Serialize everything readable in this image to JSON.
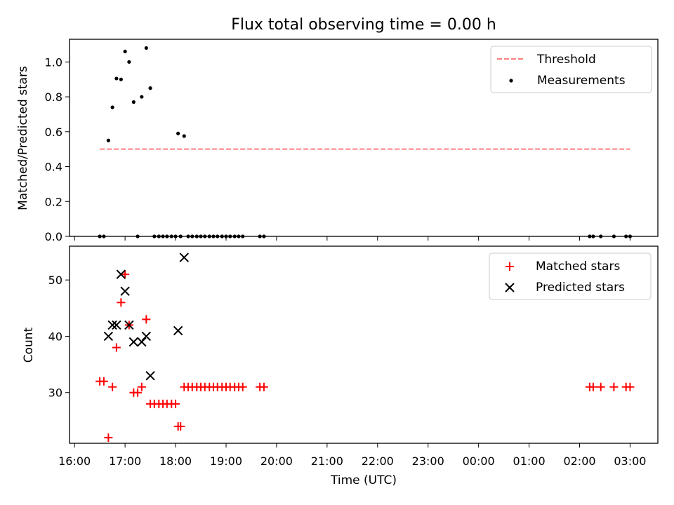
{
  "figure_title": "Flux total observing time = 0.00 h",
  "chart_data": [
    {
      "type": "scatter",
      "ylabel": "Matched/Predicted stars",
      "xlim": [
        -0.1,
        11.55
      ],
      "ylim": [
        0.0,
        1.13
      ],
      "x_is_hours_since": "16:00",
      "yticks": [
        0.0,
        0.2,
        0.4,
        0.6,
        0.8,
        1.0
      ],
      "ytick_labels": [
        "0.0",
        "0.2",
        "0.4",
        "0.6",
        "0.8",
        "1.0"
      ],
      "series": [
        {
          "name": "Threshold",
          "kind": "line",
          "style": "dashed",
          "color": "#ff7f7f",
          "x": [
            0.5,
            11.0
          ],
          "y": [
            0.5,
            0.5
          ]
        },
        {
          "name": "Measurements",
          "kind": "dot",
          "color": "#000000",
          "x": [
            0.5,
            0.58,
            0.67,
            0.75,
            0.83,
            0.92,
            1.0,
            1.08,
            1.17,
            1.25,
            1.33,
            1.42,
            1.5,
            1.58,
            1.67,
            1.75,
            1.83,
            1.92,
            2.0,
            2.05,
            2.1,
            2.17,
            2.25,
            2.33,
            2.42,
            2.5,
            2.58,
            2.67,
            2.75,
            2.83,
            2.92,
            3.0,
            3.08,
            3.17,
            3.25,
            3.33,
            3.67,
            3.75,
            10.2,
            10.27,
            10.42,
            10.68,
            10.92,
            11.0
          ],
          "y": [
            0.0,
            0.0,
            0.55,
            0.74,
            0.905,
            0.9,
            1.06,
            1.0,
            0.77,
            0.0,
            0.8,
            1.08,
            0.85,
            0.0,
            0.0,
            0.0,
            0.0,
            0.0,
            0.0,
            0.59,
            0.0,
            0.575,
            0.0,
            0.0,
            0.0,
            0.0,
            0.0,
            0.0,
            0.0,
            0.0,
            0.0,
            0.0,
            0.0,
            0.0,
            0.0,
            0.0,
            0.0,
            0.0,
            0.0,
            0.0,
            0.0,
            0.0,
            0.0,
            0.0
          ]
        }
      ],
      "legend": [
        "Threshold",
        "Measurements"
      ],
      "legend_position": "top-right"
    },
    {
      "type": "scatter",
      "xlabel": "Time (UTC)",
      "ylabel": "Count",
      "xlim": [
        -0.1,
        11.55
      ],
      "ylim": [
        21.0,
        56.0
      ],
      "yticks": [
        30,
        40,
        50
      ],
      "ytick_labels": [
        "30",
        "40",
        "50"
      ],
      "xticks": [
        0,
        1,
        2,
        3,
        4,
        5,
        6,
        7,
        8,
        9,
        10,
        11
      ],
      "xtick_labels": [
        "16:00",
        "17:00",
        "18:00",
        "19:00",
        "20:00",
        "21:00",
        "22:00",
        "23:00",
        "00:00",
        "01:00",
        "02:00",
        "03:00"
      ],
      "series": [
        {
          "name": "Matched stars",
          "marker": "plus",
          "color": "#ff0000",
          "x": [
            0.5,
            0.58,
            0.67,
            0.75,
            0.83,
            0.92,
            1.0,
            1.08,
            1.17,
            1.25,
            1.33,
            1.42,
            1.5,
            1.58,
            1.67,
            1.75,
            1.83,
            1.92,
            2.0,
            2.05,
            2.1,
            2.17,
            2.25,
            2.33,
            2.42,
            2.5,
            2.58,
            2.67,
            2.75,
            2.83,
            2.92,
            3.0,
            3.08,
            3.17,
            3.25,
            3.33,
            3.67,
            3.75,
            10.2,
            10.27,
            10.42,
            10.68,
            10.92,
            11.0
          ],
          "y": [
            32,
            32,
            22,
            31,
            38,
            46,
            51,
            42,
            30,
            30,
            31,
            43,
            28,
            28,
            28,
            28,
            28,
            28,
            28,
            24,
            24,
            31,
            31,
            31,
            31,
            31,
            31,
            31,
            31,
            31,
            31,
            31,
            31,
            31,
            31,
            31,
            31,
            31,
            31,
            31,
            31,
            31,
            31,
            31
          ]
        },
        {
          "name": "Predicted stars",
          "marker": "x",
          "color": "#000000",
          "x": [
            0.67,
            0.75,
            0.83,
            0.92,
            1.0,
            1.08,
            1.17,
            1.33,
            1.42,
            1.5,
            2.05,
            2.17
          ],
          "y": [
            40,
            42,
            42,
            51,
            48,
            42,
            39,
            39,
            40,
            33,
            41,
            54
          ]
        }
      ],
      "legend": [
        "Matched stars",
        "Predicted stars"
      ],
      "legend_position": "top-right"
    }
  ]
}
